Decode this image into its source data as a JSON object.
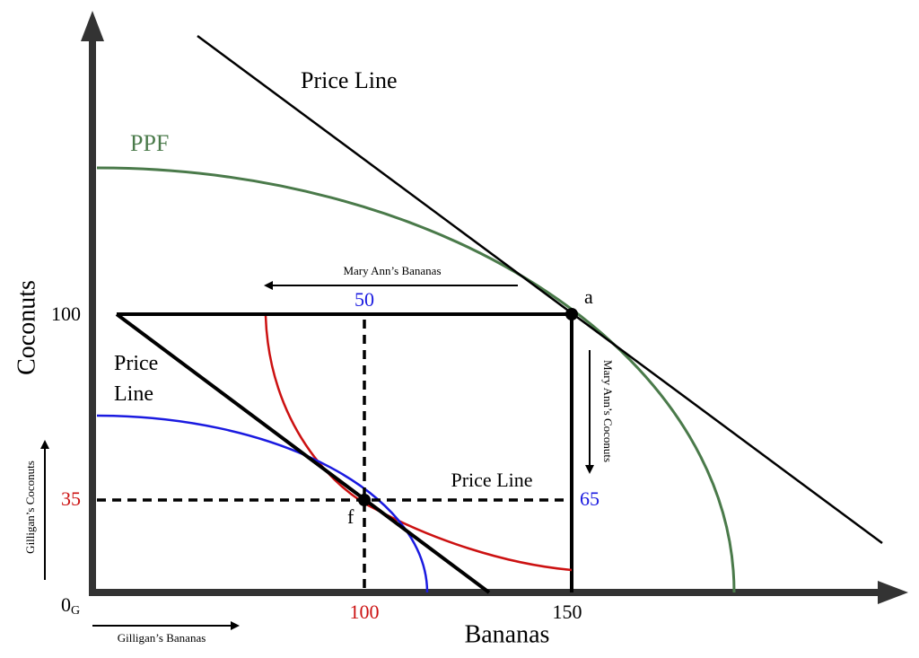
{
  "title_price_line": "Price Line",
  "ppf_label": "PPF",
  "y_axis_label": "Coconuts",
  "x_axis_label": "Bananas",
  "origin": {
    "text": "0",
    "subscript": "G"
  },
  "y_ticks": {
    "y100": "100",
    "y35": "35"
  },
  "x_ticks": {
    "x100": "100",
    "x150": "150"
  },
  "point_a": "a",
  "point_f": "f",
  "label_50": "50",
  "label_65": "65",
  "left_price_line": "Price Line",
  "middle_price_line": "Price Line",
  "arrows": {
    "mary_bananas": "Mary Ann’s Bananas",
    "mary_coconuts": "Mary Ann’s Coconuts",
    "gilligan_coconuts": "Gilligan’s Coconuts",
    "gilligan_bananas": "Gilligan’s Bananas"
  }
}
